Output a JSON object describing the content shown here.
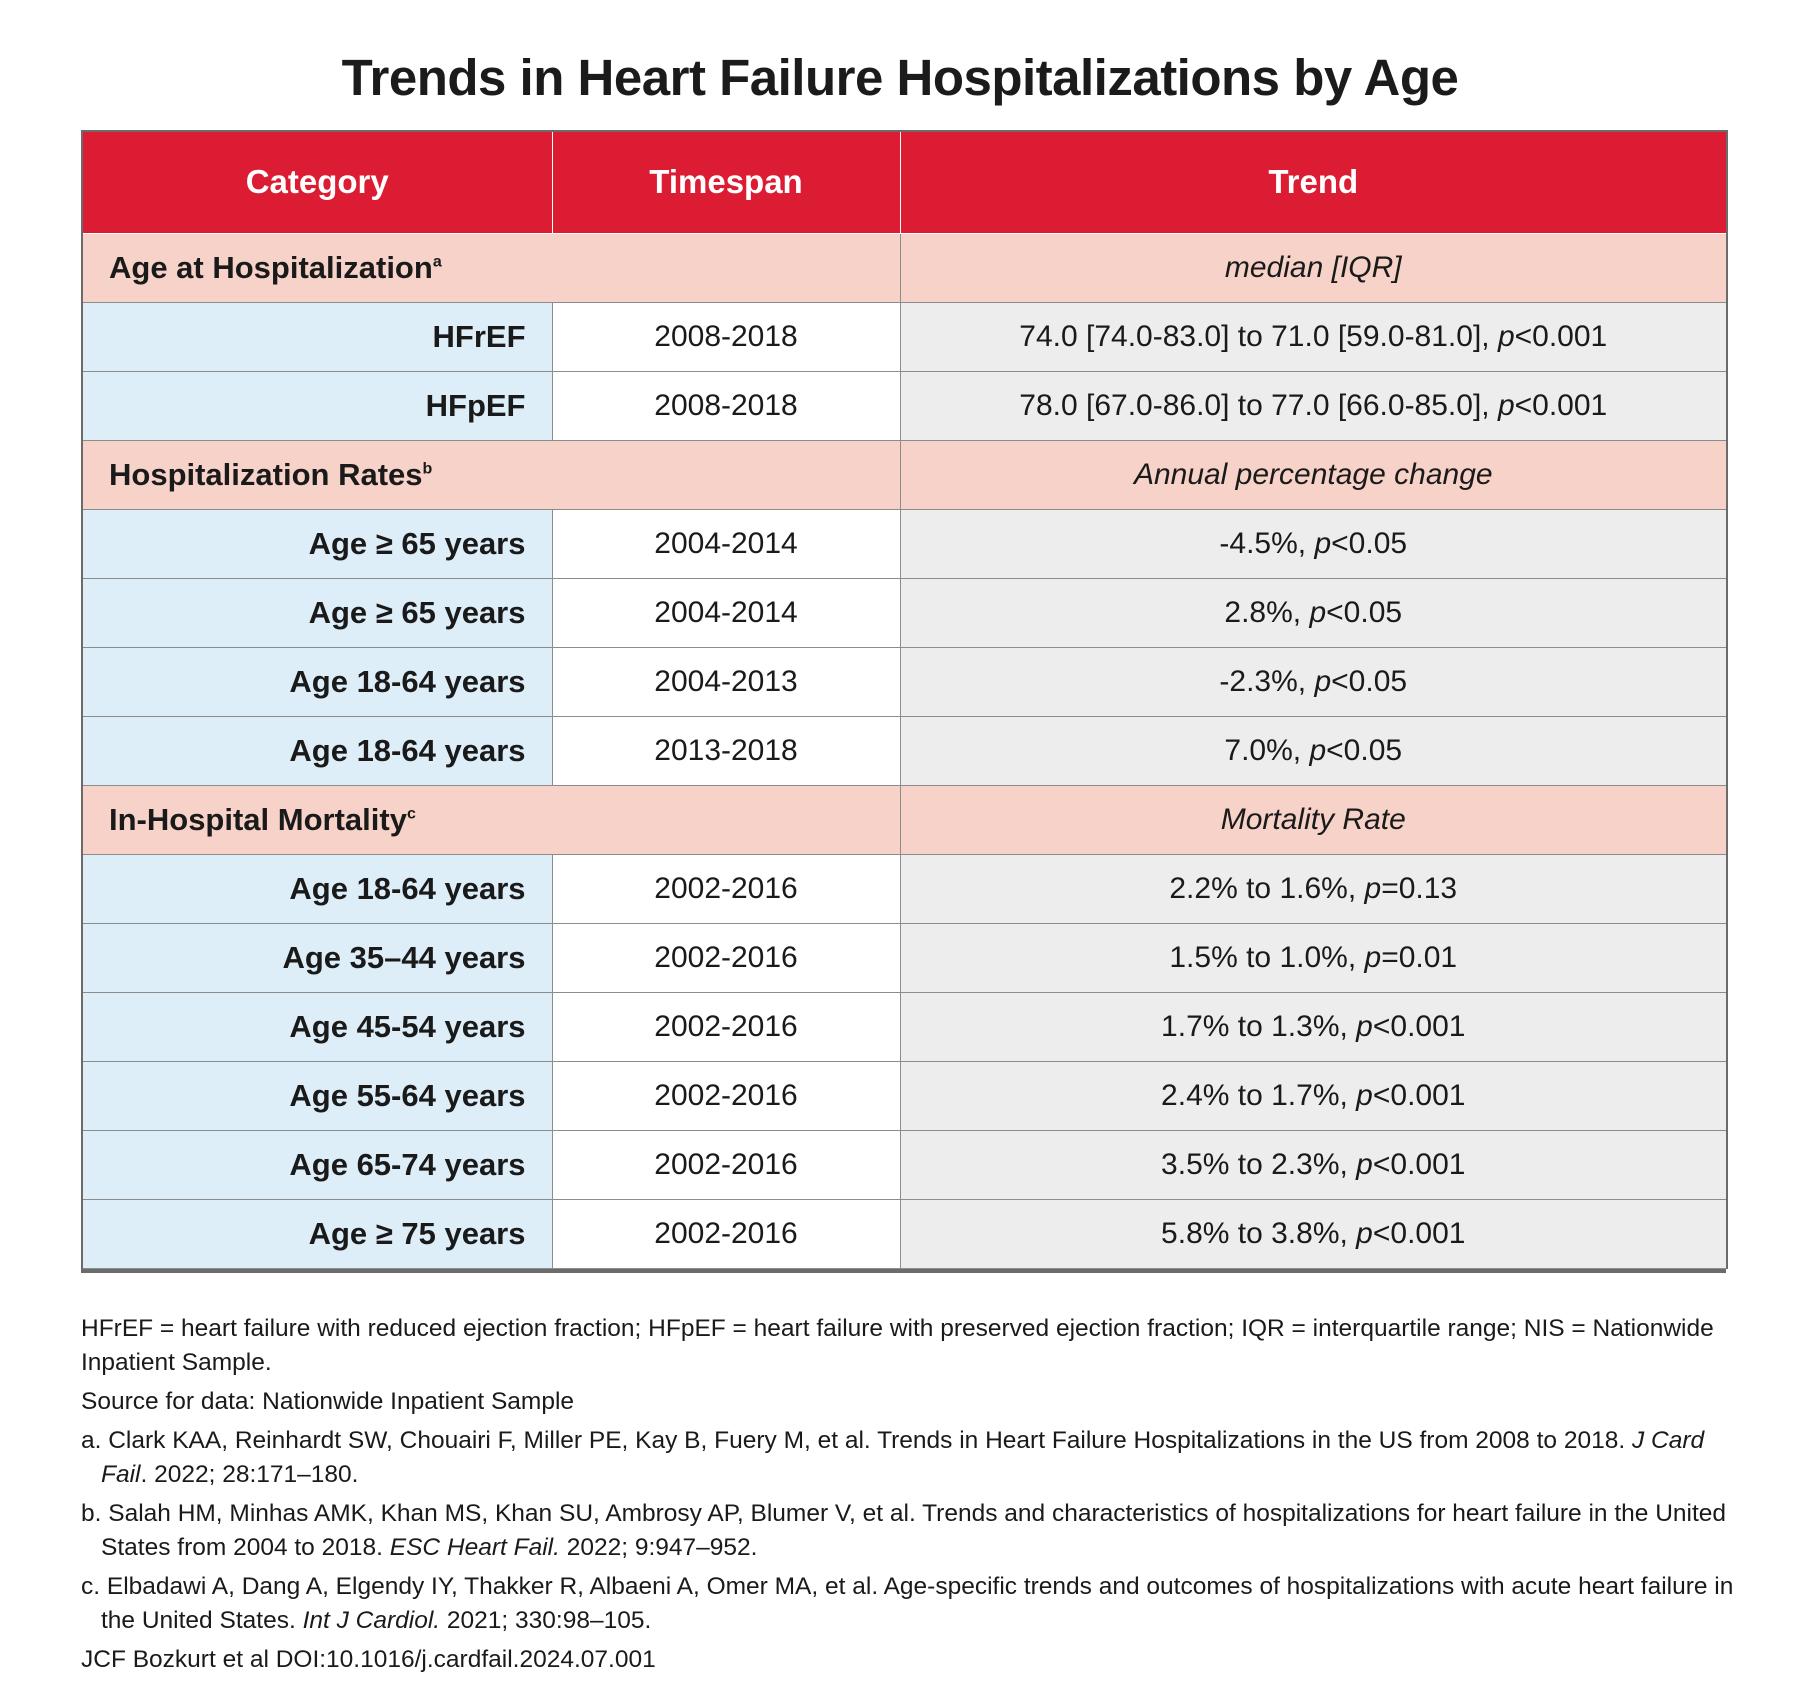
{
  "title": "Trends in Heart Failure Hospitalizations by Age",
  "colors": {
    "header_bg": "#dc1c32",
    "section_bg": "#f7d2c8",
    "label_bg": "#ddeef9",
    "trend_bg": "#ededed"
  },
  "table": {
    "headers": [
      "Category",
      "Timespan",
      "Trend"
    ],
    "sections": [
      {
        "label": "Age at Hospitalization",
        "sup": "a",
        "unit": "median [IQR]",
        "rows": [
          {
            "category": "HFrEF",
            "timespan": "2008-2018",
            "trend": "74.0 [74.0-83.0] to 71.0 [59.0-81.0], ",
            "p": "p",
            "p_value": "<0.001"
          },
          {
            "category": "HFpEF",
            "timespan": "2008-2018",
            "trend": "78.0 [67.0-86.0] to 77.0 [66.0-85.0], ",
            "p": "p",
            "p_value": "<0.001"
          }
        ]
      },
      {
        "label": "Hospitalization Rates",
        "sup": "b",
        "unit": "Annual percentage change",
        "rows": [
          {
            "category": "Age ≥ 65 years",
            "timespan": "2004-2014",
            "trend": "-4.5%, ",
            "p": "p",
            "p_value": "<0.05"
          },
          {
            "category": "Age ≥ 65 years",
            "timespan": "2004-2014",
            "trend": "2.8%, ",
            "p": "p",
            "p_value": "<0.05"
          },
          {
            "category": "Age 18-64 years",
            "timespan": "2004-2013",
            "trend": "-2.3%, ",
            "p": "p",
            "p_value": "<0.05"
          },
          {
            "category": "Age 18-64 years",
            "timespan": "2013-2018",
            "trend": "7.0%, ",
            "p": "p",
            "p_value": "<0.05"
          }
        ]
      },
      {
        "label": "In-Hospital Mortality",
        "sup": "c",
        "unit": "Mortality Rate",
        "rows": [
          {
            "category": "Age 18-64 years",
            "timespan": "2002-2016",
            "trend": "2.2% to 1.6%, ",
            "p": "p",
            "p_value": "=0.13"
          },
          {
            "category": "Age 35–44 years",
            "timespan": "2002-2016",
            "trend": "1.5% to 1.0%, ",
            "p": "p",
            "p_value": "=0.01"
          },
          {
            "category": "Age 45-54 years",
            "timespan": "2002-2016",
            "trend": "1.7% to 1.3%, ",
            "p": "p",
            "p_value": "<0.001"
          },
          {
            "category": "Age 55-64 years",
            "timespan": "2002-2016",
            "trend": "2.4% to 1.7%, ",
            "p": "p",
            "p_value": "<0.001"
          },
          {
            "category": "Age 65-74 years",
            "timespan": "2002-2016",
            "trend": "3.5% to 2.3%, ",
            "p": "p",
            "p_value": "<0.001"
          },
          {
            "category": "Age ≥ 75 years",
            "timespan": "2002-2016",
            "trend": "5.8% to 3.8%, ",
            "p": "p",
            "p_value": "<0.001"
          }
        ]
      }
    ]
  },
  "footnotes": {
    "abbreviations": "HFrEF = heart failure with reduced ejection fraction; HFpEF = heart failure with preserved ejection fraction; IQR = interquartile range; NIS = Nationwide Inpatient Sample.",
    "source": "Source for data: Nationwide Inpatient Sample",
    "refs": [
      {
        "pre": "a. Clark KAA, Reinhardt SW, Chouairi F, Miller PE, Kay B, Fuery M, et al. Trends in Heart Failure Hospitalizations in the US from 2008 to 2018. ",
        "journal": "J Card Fail",
        "post": ". 2022; 28:171–180."
      },
      {
        "pre": "b. Salah HM, Minhas AMK, Khan MS, Khan SU, Ambrosy AP, Blumer V, et al. Trends and characteristics of hospitalizations for heart failure in the United States from 2004 to 2018. ",
        "journal": "ESC Heart Fail.",
        "post": " 2022; 9:947–952."
      },
      {
        "pre": "c. Elbadawi A, Dang A, Elgendy IY, Thakker R, Albaeni A, Omer MA, et al. Age-specific trends and outcomes of hospitalizations with acute heart failure in the United States. ",
        "journal": "Int J Cardiol.",
        "post": " 2021; 330:98–105."
      }
    ],
    "credit": "JCF Bozkurt et al  DOI:10.1016/j.cardfail.2024.07.001"
  }
}
